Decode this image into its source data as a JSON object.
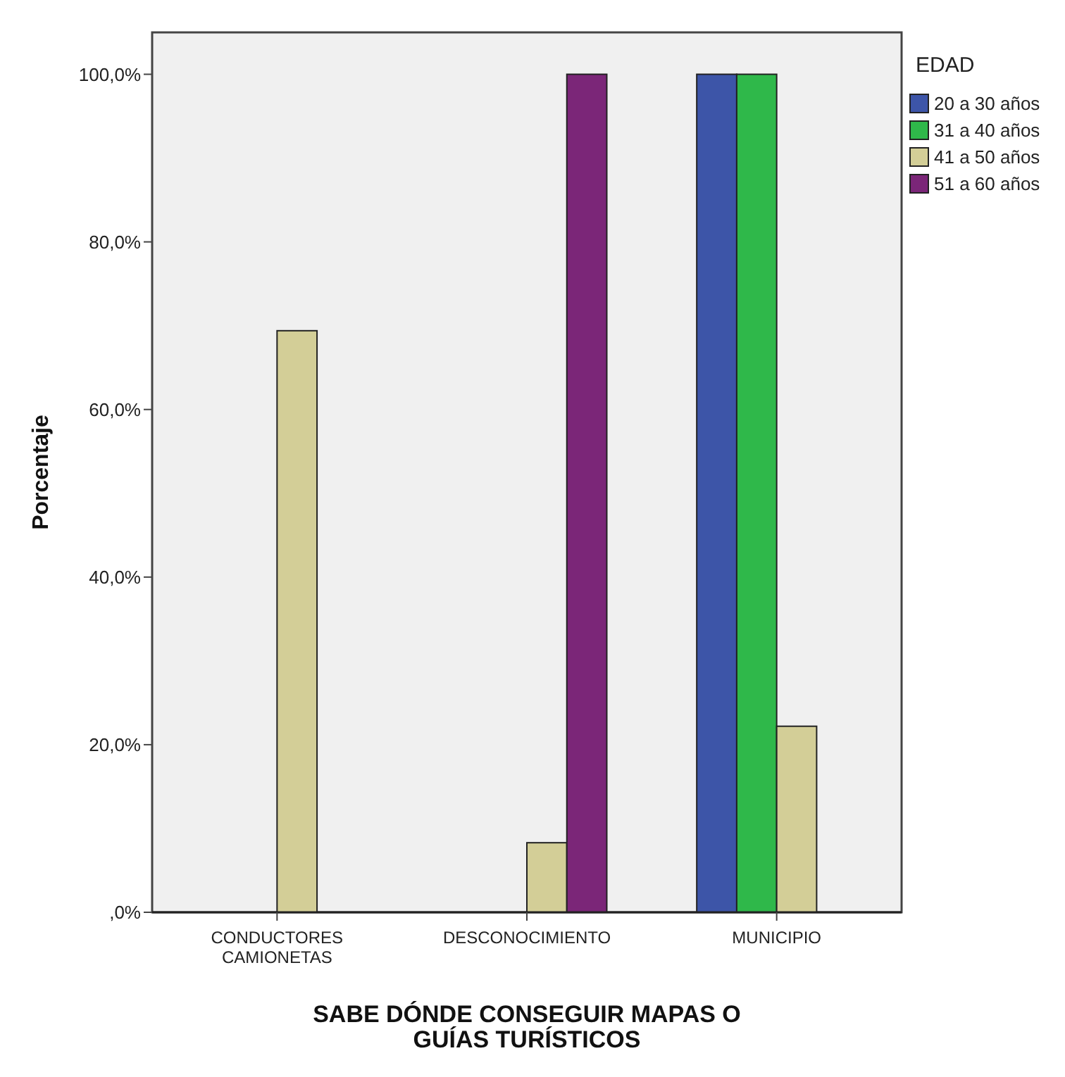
{
  "chart_data": {
    "type": "bar",
    "xlabel": "SABE DÓNDE CONSEGUIR MAPAS O GUÍAS TURÍSTICOS",
    "ylabel": "Porcentaje",
    "legend_title": "EDAD",
    "legend": "top right",
    "categories": [
      "CONDUCTORES CAMIONETAS",
      "DESCONOCIMIENTO",
      "MUNICIPIO"
    ],
    "series": [
      {
        "name": "20 a 30 años",
        "color": "#3d55a8",
        "values": [
          0,
          0,
          100
        ]
      },
      {
        "name": "31 a 40 años",
        "color": "#2fb84a",
        "values": [
          0,
          0,
          100
        ]
      },
      {
        "name": "41 a 50 años",
        "color": "#d3ce97",
        "values": [
          69.4,
          8.3,
          22.2
        ]
      },
      {
        "name": "51 a 60 años",
        "color": "#7b2678",
        "values": [
          0,
          100,
          0
        ]
      }
    ],
    "ylim": [
      0,
      105
    ],
    "yticks": [
      {
        "value": 0,
        "label": ",0%"
      },
      {
        "value": 20,
        "label": "20,0%"
      },
      {
        "value": 40,
        "label": "40,0%"
      },
      {
        "value": 60,
        "label": "60,0%"
      },
      {
        "value": 80,
        "label": "80,0%"
      },
      {
        "value": 100,
        "label": "100,0%"
      }
    ],
    "grid": false
  }
}
